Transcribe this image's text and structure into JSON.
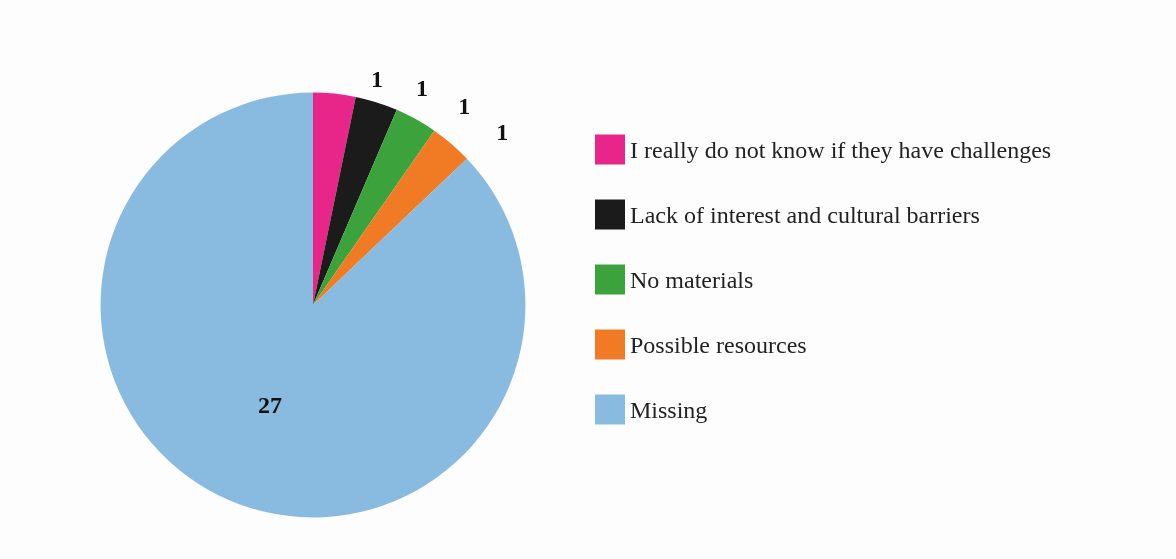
{
  "chart_data": {
    "type": "pie",
    "categories": [
      "I really do not know if they have challenges",
      "Lack of interest and cultural barriers",
      "No materials",
      "Possible resources",
      "Missing"
    ],
    "values": [
      1,
      1,
      1,
      1,
      27
    ],
    "colors": [
      "#e8268a",
      "#1b1b1b",
      "#3ca33c",
      "#f07b24",
      "#88bbdf"
    ],
    "data_labels": true,
    "legend": "right"
  }
}
